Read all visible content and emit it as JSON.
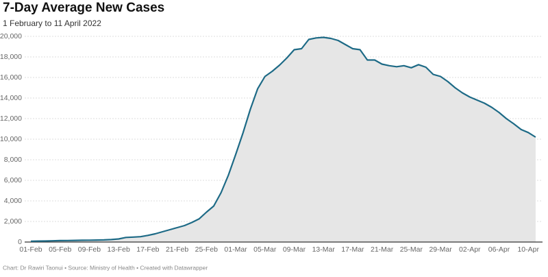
{
  "chart_data": {
    "type": "area",
    "title": "7-Day Average New Cases",
    "subtitle": "1 February to 11 April 2022",
    "source": "Chart: Dr Rawiri Taonui • Source: Ministry of Health • Created with Datawrapper",
    "color": "#1d6a86",
    "fill": "#e6e6e6",
    "grid": true,
    "categories": [
      "01-Feb",
      null,
      null,
      null,
      "05-Feb",
      null,
      null,
      null,
      "09-Feb",
      null,
      null,
      null,
      "13-Feb",
      null,
      null,
      null,
      "17-Feb",
      null,
      null,
      null,
      "21-Feb",
      null,
      null,
      null,
      "25-Feb",
      null,
      null,
      null,
      "01-Mar",
      null,
      null,
      null,
      "05-Mar",
      null,
      null,
      null,
      "09-Mar",
      null,
      null,
      null,
      "13-Mar",
      null,
      null,
      null,
      "17-Mar",
      null,
      null,
      null,
      "21-Mar",
      null,
      null,
      null,
      "25-Mar",
      null,
      null,
      null,
      "29-Mar",
      null,
      null,
      null,
      "02-Apr",
      null,
      null,
      null,
      "06-Apr",
      null,
      null,
      null,
      "10-Apr",
      null
    ],
    "values": [
      80,
      90,
      100,
      120,
      140,
      150,
      160,
      170,
      180,
      190,
      210,
      240,
      300,
      450,
      480,
      520,
      650,
      800,
      1000,
      1200,
      1400,
      1600,
      1900,
      2250,
      2900,
      3500,
      4800,
      6500,
      8500,
      10600,
      12900,
      14900,
      16100,
      16600,
      17200,
      17900,
      18700,
      18800,
      19700,
      19850,
      19900,
      19800,
      19600,
      19200,
      18800,
      18700,
      17700,
      17700,
      17300,
      17150,
      17050,
      17150,
      16950,
      17250,
      17000,
      16300,
      16100,
      15600,
      15000,
      14500,
      14100,
      13800,
      13500,
      13100,
      12600,
      12000,
      11500,
      10950,
      10650,
      10200
    ],
    "ylim": [
      0,
      20000
    ],
    "yticks": [
      0,
      {
        "value": 2000,
        "label": "2,000"
      },
      {
        "value": 4000,
        "label": "4,000"
      },
      {
        "value": 6000,
        "label": "6,000"
      },
      {
        "value": 8000,
        "label": "8,000"
      },
      {
        "value": 10000,
        "label": "10,000"
      },
      {
        "value": 12000,
        "label": "12,000"
      },
      {
        "value": 14000,
        "label": "14,000"
      },
      {
        "value": 16000,
        "label": "16,000"
      },
      {
        "value": 18000,
        "label": "18,000"
      },
      {
        "value": 20000,
        "label": "20,000"
      }
    ]
  }
}
